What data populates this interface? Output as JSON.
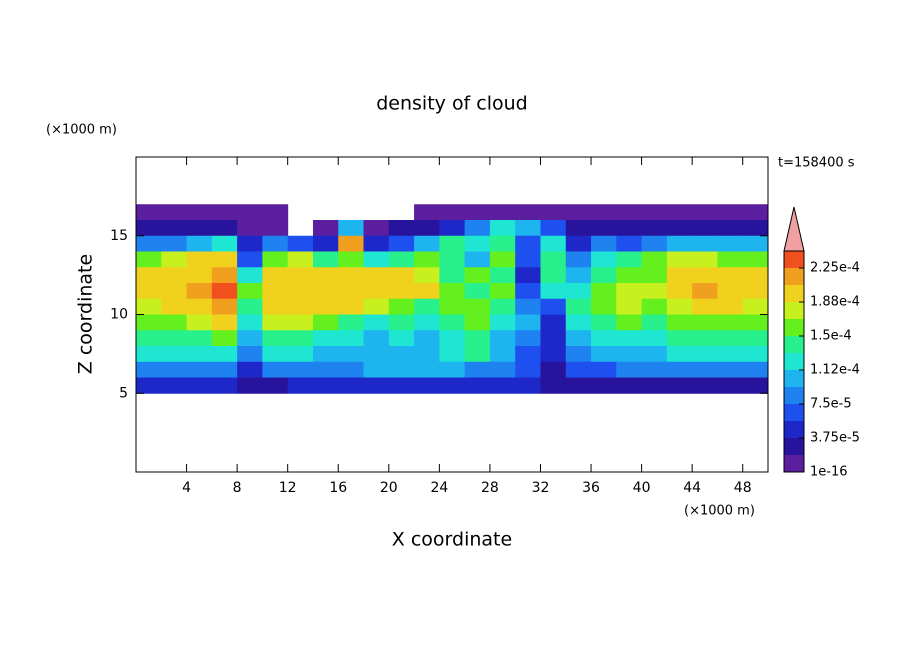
{
  "chart_data": {
    "type": "contour",
    "title": "density of cloud",
    "xlabel": "X coordinate",
    "ylabel": "Z coordinate",
    "xunit": "(×1000 m)",
    "yunit": "(×1000 m)",
    "time_label": "t=158400 s",
    "xlim": [
      0,
      50
    ],
    "ylim": [
      0,
      20
    ],
    "xticks": [
      4,
      8,
      12,
      16,
      20,
      24,
      28,
      32,
      36,
      40,
      44,
      48
    ],
    "yticks": [
      5,
      10,
      15
    ],
    "x": [
      1,
      3,
      5,
      7,
      9,
      11,
      13,
      15,
      17,
      19,
      21,
      23,
      25,
      27,
      29,
      31,
      33,
      35,
      37,
      39,
      41,
      43,
      45,
      47,
      49
    ],
    "y": [
      16.5,
      15.5,
      14.5,
      13.5,
      12.5,
      11.5,
      10.5,
      9.5,
      8.5,
      7.5,
      6.5,
      5.5
    ],
    "z": [
      [
        1e-05,
        1e-05,
        1e-05,
        1e-05,
        1e-05,
        1e-05,
        null,
        null,
        null,
        null,
        null,
        1e-05,
        1e-05,
        1e-05,
        1e-05,
        1e-05,
        1e-05,
        1e-05,
        1e-05,
        1e-05,
        1e-05,
        1e-05,
        1e-05,
        1e-05,
        1e-05
      ],
      [
        3e-05,
        3e-05,
        3e-05,
        3e-05,
        1e-05,
        1e-05,
        null,
        1e-05,
        0.0001,
        1e-05,
        3e-05,
        3e-05,
        4.5e-05,
        8.5e-05,
        0.00012,
        0.0001,
        6.5e-05,
        3e-05,
        3e-05,
        3e-05,
        3e-05,
        3e-05,
        3e-05,
        3e-05,
        3e-05
      ],
      [
        8.5e-05,
        8.5e-05,
        0.0001,
        0.00012,
        4.5e-05,
        8.5e-05,
        6.5e-05,
        4.5e-05,
        0.000215,
        4.5e-05,
        6.5e-05,
        0.0001,
        0.00014,
        0.00012,
        0.00014,
        6.5e-05,
        0.00012,
        4.5e-05,
        8.5e-05,
        6.5e-05,
        8.5e-05,
        0.0001,
        0.0001,
        0.0001,
        0.0001
      ],
      [
        0.00016,
        0.00018,
        0.000195,
        0.000195,
        6.5e-05,
        0.00016,
        0.00018,
        0.00014,
        0.00016,
        0.00012,
        0.00014,
        0.00016,
        0.00014,
        0.0001,
        0.00016,
        6.5e-05,
        0.00014,
        8.5e-05,
        0.00012,
        0.00014,
        0.00016,
        0.00018,
        0.00018,
        0.00016,
        0.00016
      ],
      [
        0.000195,
        0.000195,
        0.000195,
        0.000215,
        0.00012,
        0.000195,
        0.000195,
        0.000195,
        0.000195,
        0.000195,
        0.000195,
        0.00018,
        0.00014,
        0.00016,
        0.00014,
        4.5e-05,
        0.00014,
        0.0001,
        0.00014,
        0.00016,
        0.00016,
        0.000195,
        0.000195,
        0.000195,
        0.000195
      ],
      [
        0.000195,
        0.000195,
        0.000215,
        0.00023,
        0.00016,
        0.000195,
        0.000195,
        0.000195,
        0.000195,
        0.000195,
        0.000195,
        0.000195,
        0.00016,
        0.00014,
        0.00016,
        6.5e-05,
        0.00012,
        0.00012,
        0.00016,
        0.00018,
        0.00018,
        0.000195,
        0.000215,
        0.000195,
        0.000195
      ],
      [
        0.00018,
        0.000195,
        0.000195,
        0.000215,
        0.00014,
        0.000195,
        0.000195,
        0.000195,
        0.000195,
        0.00018,
        0.00016,
        0.00014,
        0.00016,
        0.00016,
        0.00014,
        8.5e-05,
        6.5e-05,
        0.00014,
        0.00016,
        0.00018,
        0.00016,
        0.00018,
        0.000195,
        0.000195,
        0.00018
      ],
      [
        0.00016,
        0.00016,
        0.00018,
        0.000195,
        0.00012,
        0.00018,
        0.00018,
        0.00016,
        0.00014,
        0.00012,
        0.00014,
        0.00012,
        0.00014,
        0.00016,
        0.00012,
        0.0001,
        4.5e-05,
        0.00012,
        0.00014,
        0.00016,
        0.00014,
        0.00016,
        0.00016,
        0.00016,
        0.00016
      ],
      [
        0.00014,
        0.00014,
        0.00014,
        0.00016,
        0.0001,
        0.00014,
        0.00014,
        0.00012,
        0.00012,
        0.0001,
        0.00012,
        0.0001,
        0.00012,
        0.00014,
        0.0001,
        8.5e-05,
        4.5e-05,
        0.0001,
        0.00012,
        0.00012,
        0.00012,
        0.00014,
        0.00014,
        0.00014,
        0.00014
      ],
      [
        0.00012,
        0.00012,
        0.00012,
        0.00012,
        8.5e-05,
        0.00012,
        0.00012,
        0.0001,
        0.0001,
        0.0001,
        0.0001,
        0.0001,
        0.00012,
        0.00014,
        0.0001,
        6.5e-05,
        4.5e-05,
        8.5e-05,
        0.0001,
        0.0001,
        0.0001,
        0.00012,
        0.00012,
        0.00012,
        0.00012
      ],
      [
        8.5e-05,
        8.5e-05,
        8.5e-05,
        8.5e-05,
        4.5e-05,
        8.5e-05,
        8.5e-05,
        8.5e-05,
        8.5e-05,
        0.0001,
        0.0001,
        0.0001,
        0.0001,
        8.5e-05,
        8.5e-05,
        6.5e-05,
        3e-05,
        6.5e-05,
        6.5e-05,
        8.5e-05,
        8.5e-05,
        8.5e-05,
        8.5e-05,
        8.5e-05,
        8.5e-05
      ],
      [
        4.5e-05,
        4.5e-05,
        4.5e-05,
        4.5e-05,
        3e-05,
        3e-05,
        4.5e-05,
        4.5e-05,
        4.5e-05,
        4.5e-05,
        4.5e-05,
        4.5e-05,
        4.5e-05,
        4.5e-05,
        4.5e-05,
        4.5e-05,
        3e-05,
        3e-05,
        3e-05,
        3e-05,
        3e-05,
        3e-05,
        3e-05,
        3e-05,
        3e-05
      ]
    ],
    "levels": [
      1e-16,
      1.875e-05,
      3.75e-05,
      5.625e-05,
      7.5e-05,
      9.375e-05,
      0.0001125,
      0.00013125,
      0.00015,
      0.00016875,
      0.0001875,
      0.00020625,
      0.000225,
      0.00024375
    ],
    "colors": [
      "#5a1e9e",
      "#28149c",
      "#1e28c8",
      "#1e50f0",
      "#1e82f0",
      "#1eb4f0",
      "#1ee6d2",
      "#28f08c",
      "#64f01e",
      "#c8f01e",
      "#f0d21e",
      "#f0a01e",
      "#f0501e"
    ],
    "extend_color": "#f0a0a0",
    "clim": [
      1e-16,
      0.00024375
    ],
    "cticks": [
      1e-16,
      {
        "value": 3.75e-05,
        "label": "3.75e-5"
      },
      {
        "value": 7.5e-05,
        "label": "7.5e-5"
      },
      {
        "value": 0.0001125,
        "label": "1.12e-4"
      },
      {
        "value": 0.00015,
        "label": "1.5e-4"
      },
      {
        "value": 0.0001875,
        "label": "1.88e-4"
      },
      {
        "value": 0.000225,
        "label": "2.25e-4"
      }
    ]
  }
}
